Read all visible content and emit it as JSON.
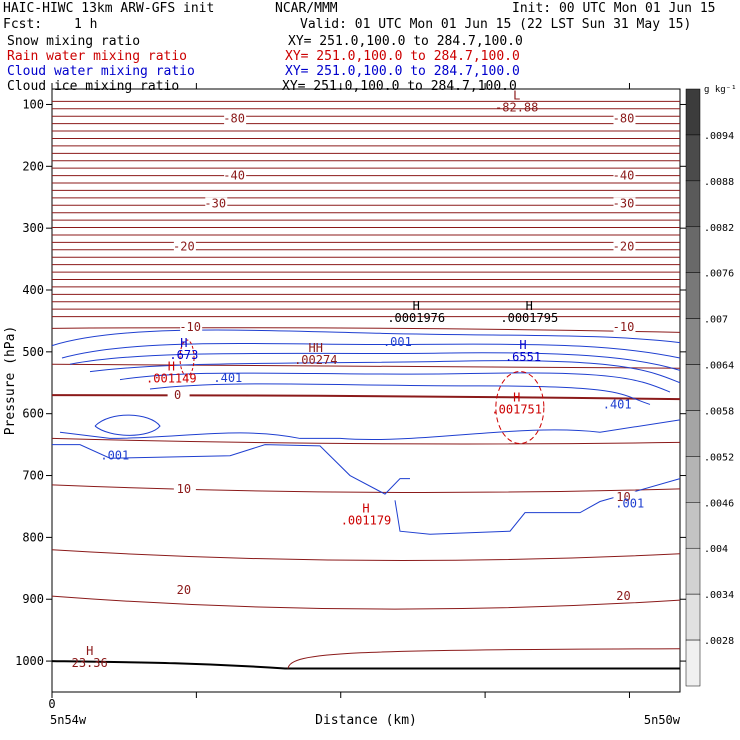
{
  "header": {
    "title_left": "HAIC-HIWC 13km ARW-GFS init",
    "title_mid": "NCAR/MMM",
    "init_time": "Init: 00 UTC Mon 01 Jun 15",
    "fcst_label": "Fcst:",
    "fcst_value": "1 h",
    "valid_time": "Valid: 01 UTC Mon 01 Jun 15 (22 LST Sun 31 May 15)",
    "fields": [
      {
        "name": "Snow mixing ratio",
        "xy": "XY= 251.0,100.0 to 284.7,100.0",
        "color": "#000000"
      },
      {
        "name": "Rain water mixing ratio",
        "xy": "XY= 251.0,100.0 to 284.7,100.0",
        "color": "#cc0000"
      },
      {
        "name": "Cloud water mixing ratio",
        "xy": "XY= 251.0,100.0 to 284.7,100.0",
        "color": "#0000cc"
      },
      {
        "name": "Cloud ice mixing ratio",
        "xy": "XY= 251.0,100.0 to 284.7,100.0",
        "color": "#000000"
      }
    ]
  },
  "chart_data": {
    "type": "contour-cross-section",
    "xlabel": "Distance (km)",
    "ylabel": "Pressure (hPa)",
    "x_tick_zero": "0",
    "x_left_label": "5n54w",
    "x_right_label": "5n50w",
    "y_ticks": [
      100,
      200,
      300,
      400,
      500,
      600,
      700,
      800,
      900,
      1000
    ],
    "ylim": [
      1050,
      75
    ],
    "temperature_labels": [
      {
        "value": "-80",
        "p": 123,
        "x": 0.29
      },
      {
        "value": "-80",
        "p": 123,
        "x": 0.91
      },
      {
        "value": "-40",
        "p": 215,
        "x": 0.29
      },
      {
        "value": "-40",
        "p": 215,
        "x": 0.91
      },
      {
        "value": "-30",
        "p": 260,
        "x": 0.26
      },
      {
        "value": "-30",
        "p": 260,
        "x": 0.91
      },
      {
        "value": "-20",
        "p": 330,
        "x": 0.21
      },
      {
        "value": "-20",
        "p": 330,
        "x": 0.91
      },
      {
        "value": "-10",
        "p": 460,
        "x": 0.22
      },
      {
        "value": "-10",
        "p": 460,
        "x": 0.91
      },
      {
        "value": "0",
        "p": 570,
        "x": 0.2
      },
      {
        "value": "10",
        "p": 722,
        "x": 0.21
      },
      {
        "value": "10",
        "p": 735,
        "x": 0.91
      },
      {
        "value": "20",
        "p": 885,
        "x": 0.21
      },
      {
        "value": "20",
        "p": 895,
        "x": 0.91
      }
    ],
    "extrema": [
      {
        "mark": "L",
        "value": "-82.88",
        "p": 92,
        "x": 0.74,
        "color": "#8b1a1a"
      },
      {
        "mark": "H",
        "value": ".0001976",
        "p": 432,
        "x": 0.58,
        "color": "#000000"
      },
      {
        "mark": "H",
        "value": ".0001795",
        "p": 432,
        "x": 0.76,
        "color": "#000000"
      },
      {
        "mark": "H",
        "value": ".673",
        "p": 492,
        "x": 0.21,
        "color": "#0000cc"
      },
      {
        "mark": "H",
        "value": ".001149",
        "p": 530,
        "x": 0.19,
        "color": "#cc0000"
      },
      {
        "mark": "HH",
        "value": ".00274",
        "p": 500,
        "x": 0.42,
        "color": "#8b1a1a"
      },
      {
        "mark": "H",
        "value": ".6551",
        "p": 495,
        "x": 0.75,
        "color": "#0000cc"
      },
      {
        "mark": "H",
        "value": ".001751",
        "p": 580,
        "x": 0.74,
        "color": "#cc0000"
      },
      {
        "mark": "H",
        "value": ".001179",
        "p": 760,
        "x": 0.5,
        "color": "#cc0000"
      },
      {
        "mark": "H",
        "value": "23.36",
        "p": 990,
        "x": 0.06,
        "color": "#8b1a1a"
      }
    ],
    "cloud_labels": [
      {
        "value": ".001",
        "p": 484,
        "x": 0.55
      },
      {
        "value": ".401",
        "p": 542,
        "x": 0.28
      },
      {
        "value": ".401",
        "p": 585,
        "x": 0.9
      },
      {
        "value": ".001",
        "p": 668,
        "x": 0.1
      },
      {
        "value": ".001",
        "p": 745,
        "x": 0.92
      }
    ],
    "colorbar": {
      "unit": "g kg⁻¹",
      "labels": [
        ".0094",
        ".0088",
        ".0082",
        ".0076",
        ".007",
        ".0064",
        ".0058",
        ".0052",
        ".0046",
        ".004",
        ".0034",
        ".0028"
      ]
    }
  }
}
